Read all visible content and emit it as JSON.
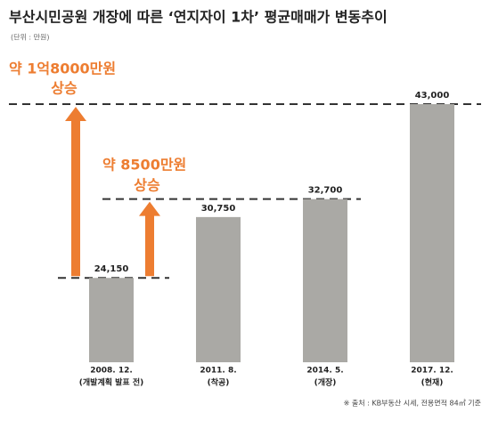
{
  "chart_data": {
    "type": "bar",
    "title": "부산시민공원 개장에 따른 ‘연지자이 1차’ 평균매매가 변동추이",
    "subtitle": "(단위 : 만원)",
    "categories": [
      "2008. 12.",
      "2011. 8.",
      "2014. 5.",
      "2017. 12."
    ],
    "category_notes": [
      "(개발계획 발표 전)",
      "(착공)",
      "(개장)",
      "(현재)"
    ],
    "values": [
      24150,
      30750,
      32700,
      43000
    ],
    "value_labels": [
      "24,150",
      "30,750",
      "32,700",
      "43,000"
    ],
    "color": "#aaa9a5",
    "ylim": [
      15000,
      43000
    ],
    "annotations": [
      "약 1억8000만원",
      "상승",
      "약 8500만원",
      "상승"
    ],
    "annotation_color": "#ed7d31",
    "source": "※ 출처 : KB부동산 시세, 전용면적 84㎡ 기준"
  }
}
